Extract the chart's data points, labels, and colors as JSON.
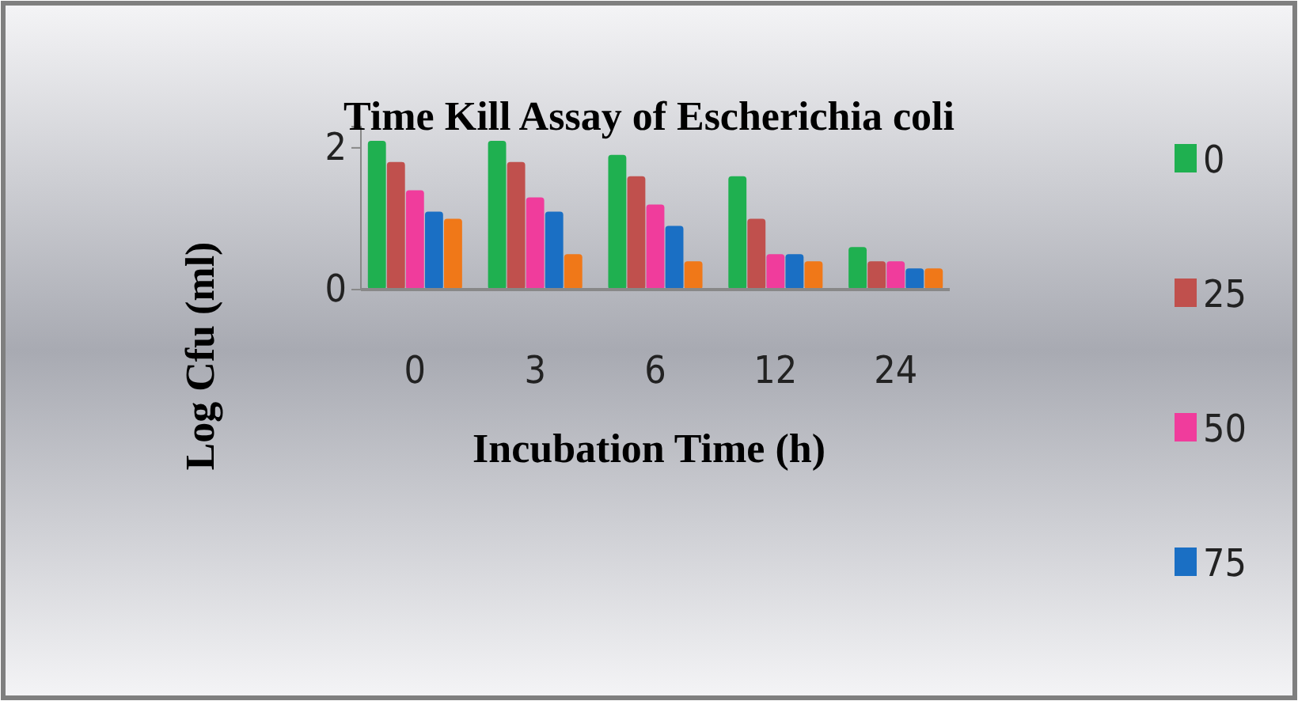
{
  "chart_data": {
    "type": "bar",
    "title": "Time Kill Assay of Escherichia coli",
    "xlabel": "Incubation Time (h)",
    "ylabel": "Log Cfu  (ml)",
    "categories": [
      "0",
      "3",
      "6",
      "12",
      "24"
    ],
    "series": [
      {
        "name": "0",
        "color": "#1fb050",
        "values": [
          2.1,
          2.1,
          1.9,
          1.6,
          0.6
        ]
      },
      {
        "name": "25",
        "color": "#c0504d",
        "values": [
          1.8,
          1.8,
          1.6,
          1.0,
          0.4
        ]
      },
      {
        "name": "50",
        "color": "#f03c9c",
        "values": [
          1.4,
          1.3,
          1.2,
          0.5,
          0.4
        ]
      },
      {
        "name": "75",
        "color": "#1a6fc4",
        "values": [
          1.1,
          1.1,
          0.9,
          0.5,
          0.3
        ]
      },
      {
        "color": "#f07818",
        "values": [
          1.0,
          0.5,
          0.4,
          0.4,
          0.3
        ]
      }
    ],
    "ylim": [
      0,
      2.3
    ],
    "yticks": [
      0,
      2
    ],
    "legend": "right",
    "grid": false
  }
}
